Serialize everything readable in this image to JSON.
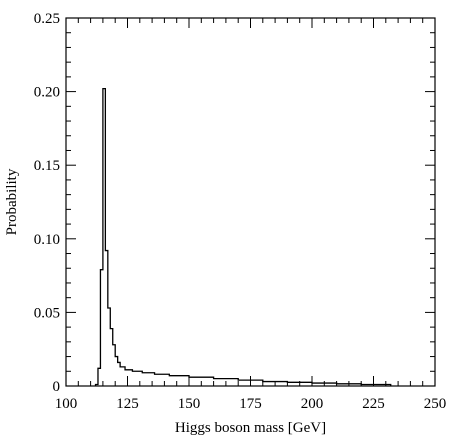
{
  "chart_data": {
    "type": "histogram",
    "xlabel": "Higgs boson mass [GeV]",
    "ylabel": "Probability",
    "xlim": [
      100,
      250
    ],
    "ylim": [
      0,
      0.25
    ],
    "x_ticks": [
      "100",
      "125",
      "150",
      "175",
      "200",
      "225",
      "250"
    ],
    "y_ticks": [
      "0",
      "0.05",
      "0.10",
      "0.15",
      "0.20",
      "0.25"
    ],
    "x_tick_values": [
      100,
      125,
      150,
      175,
      200,
      225,
      250
    ],
    "y_tick_values": [
      0,
      0.05,
      0.1,
      0.15,
      0.2,
      0.25
    ],
    "bins": [
      {
        "x0": 112,
        "x1": 113,
        "value": 0.001
      },
      {
        "x0": 113,
        "x1": 114,
        "value": 0.012
      },
      {
        "x0": 114,
        "x1": 115,
        "value": 0.079
      },
      {
        "x0": 115,
        "x1": 116,
        "value": 0.202
      },
      {
        "x0": 116,
        "x1": 117,
        "value": 0.092
      },
      {
        "x0": 117,
        "x1": 118,
        "value": 0.053
      },
      {
        "x0": 118,
        "x1": 119,
        "value": 0.039
      },
      {
        "x0": 119,
        "x1": 120,
        "value": 0.028
      },
      {
        "x0": 120,
        "x1": 121,
        "value": 0.02
      },
      {
        "x0": 121,
        "x1": 122,
        "value": 0.016
      },
      {
        "x0": 122,
        "x1": 124,
        "value": 0.013
      },
      {
        "x0": 124,
        "x1": 127,
        "value": 0.011
      },
      {
        "x0": 127,
        "x1": 131,
        "value": 0.01
      },
      {
        "x0": 131,
        "x1": 136,
        "value": 0.009
      },
      {
        "x0": 136,
        "x1": 142,
        "value": 0.008
      },
      {
        "x0": 142,
        "x1": 150,
        "value": 0.007
      },
      {
        "x0": 150,
        "x1": 160,
        "value": 0.006
      },
      {
        "x0": 160,
        "x1": 170,
        "value": 0.005
      },
      {
        "x0": 170,
        "x1": 180,
        "value": 0.004
      },
      {
        "x0": 180,
        "x1": 190,
        "value": 0.003
      },
      {
        "x0": 190,
        "x1": 200,
        "value": 0.0025
      },
      {
        "x0": 200,
        "x1": 210,
        "value": 0.002
      },
      {
        "x0": 210,
        "x1": 220,
        "value": 0.0015
      },
      {
        "x0": 220,
        "x1": 232,
        "value": 0.001
      }
    ]
  }
}
